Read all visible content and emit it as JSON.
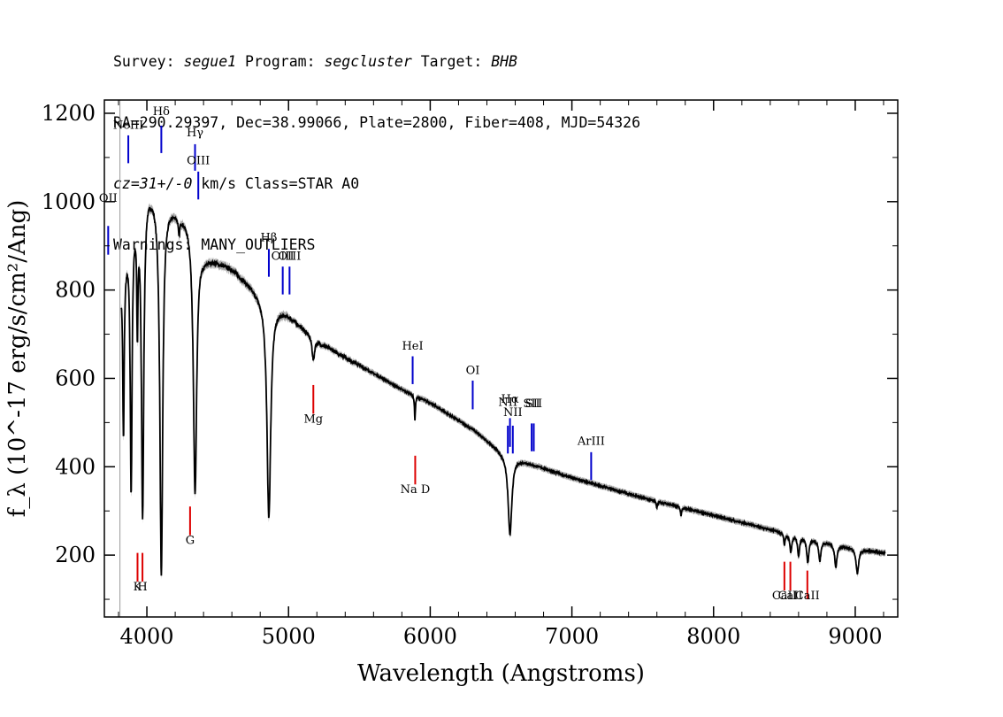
{
  "header": {
    "line1": {
      "survey_label": "Survey: ",
      "survey": "segue1",
      "program_label": " Program: ",
      "program": "segcluster",
      "target_label": " Target: ",
      "target": "BHB"
    },
    "line2": "RA=290.29397, Dec=38.99066, Plate=2800, Fiber=408, MJD=54326",
    "line3": {
      "cz": "cz=31+/-0",
      "rest": " km/s Class=STAR A0"
    },
    "line4": "Warnings: MANY_OUTLIERS"
  },
  "chart_data": {
    "type": "line",
    "xlabel": "Wavelength (Angstroms)",
    "ylabel": "f_λ (10^-17 erg/s/cm²/Ang)",
    "xlim": [
      3700,
      9300
    ],
    "ylim": [
      60,
      1230
    ],
    "xticks": [
      4000,
      5000,
      6000,
      7000,
      8000,
      9000
    ],
    "yticks": [
      200,
      400,
      600,
      800,
      1000,
      1200
    ],
    "continuum": [
      [
        3820,
        830
      ],
      [
        3900,
        980
      ],
      [
        4000,
        1040
      ],
      [
        4100,
        1010
      ],
      [
        4300,
        960
      ],
      [
        4400,
        880
      ],
      [
        4600,
        850
      ],
      [
        4800,
        790
      ],
      [
        5000,
        745
      ],
      [
        5200,
        685
      ],
      [
        5500,
        630
      ],
      [
        5800,
        575
      ],
      [
        6000,
        545
      ],
      [
        6300,
        485
      ],
      [
        6500,
        435
      ],
      [
        6700,
        408
      ],
      [
        7000,
        375
      ],
      [
        7500,
        330
      ],
      [
        8000,
        290
      ],
      [
        8500,
        250
      ],
      [
        9000,
        215
      ],
      [
        9200,
        205
      ]
    ],
    "absorption": [
      {
        "center": 3835,
        "depth": 380,
        "width": 6
      },
      {
        "center": 3889,
        "depth": 600,
        "width": 8
      },
      {
        "center": 3933,
        "depth": 250,
        "width": 5
      },
      {
        "center": 3970,
        "depth": 720,
        "width": 10
      },
      {
        "center": 4102,
        "depth": 850,
        "width": 12
      },
      {
        "center": 4227,
        "depth": 40,
        "width": 6
      },
      {
        "center": 4340,
        "depth": 590,
        "width": 14
      },
      {
        "center": 4861,
        "depth": 490,
        "width": 16
      },
      {
        "center": 5175,
        "depth": 50,
        "width": 10
      },
      {
        "center": 5892,
        "depth": 55,
        "width": 4
      },
      {
        "center": 6563,
        "depth": 180,
        "width": 16
      },
      {
        "center": 7600,
        "depth": 15,
        "width": 5
      },
      {
        "center": 7770,
        "depth": 20,
        "width": 4
      },
      {
        "center": 8500,
        "depth": 25,
        "width": 6
      },
      {
        "center": 8545,
        "depth": 40,
        "width": 8
      },
      {
        "center": 8600,
        "depth": 45,
        "width": 8
      },
      {
        "center": 8665,
        "depth": 55,
        "width": 9
      },
      {
        "center": 8750,
        "depth": 45,
        "width": 9
      },
      {
        "center": 8863,
        "depth": 50,
        "width": 10
      },
      {
        "center": 9015,
        "depth": 55,
        "width": 11
      }
    ],
    "emission_lines": [
      {
        "label": "OII",
        "x": 3727,
        "y0": 880,
        "y1": 945,
        "label_y": 1000
      },
      {
        "label": "NeIII",
        "x": 3869,
        "y0": 1087,
        "y1": 1150,
        "label_y": 1165
      },
      {
        "label": "Hδ",
        "x": 4102,
        "y0": 1110,
        "y1": 1172,
        "label_y": 1196
      },
      {
        "label": "Hγ",
        "x": 4340,
        "y0": 1070,
        "y1": 1130,
        "label_y": 1148
      },
      {
        "label": "OIII",
        "x": 4363,
        "y0": 1005,
        "y1": 1068,
        "label_y": 1085
      },
      {
        "label": "Hβ",
        "x": 4861,
        "y0": 830,
        "y1": 893,
        "label_y": 910
      },
      {
        "label": "OIII",
        "x": 4959,
        "y0": 790,
        "y1": 853,
        "label_y": 868
      },
      {
        "label": "OIII",
        "x": 5007,
        "y0": 790,
        "y1": 853,
        "label_y": 868
      },
      {
        "label": "HeI",
        "x": 5876,
        "y0": 587,
        "y1": 650,
        "label_y": 665
      },
      {
        "label": "OI",
        "x": 6300,
        "y0": 530,
        "y1": 595,
        "label_y": 610
      },
      {
        "label": "NII",
        "x": 6548,
        "y0": 430,
        "y1": 493,
        "label_y": 538
      },
      {
        "label": "Hα",
        "x": 6563,
        "y0": 445,
        "y1": 510,
        "label_y": 545
      },
      {
        "label": "NII",
        "x": 6583,
        "y0": 430,
        "y1": 493,
        "label_y": 515
      },
      {
        "label": "SII",
        "x": 6716,
        "y0": 435,
        "y1": 498,
        "label_y": 535
      },
      {
        "label": "SII",
        "x": 6731,
        "y0": 435,
        "y1": 498,
        "label_y": 535
      },
      {
        "label": "ArIII",
        "x": 7136,
        "y0": 370,
        "y1": 433,
        "label_y": 450
      }
    ],
    "absorption_markers": [
      {
        "label": "K",
        "x": 3934,
        "y0": 140,
        "y1": 205,
        "label_y": 120
      },
      {
        "label": "H",
        "x": 3969,
        "y0": 140,
        "y1": 205,
        "label_y": 120
      },
      {
        "label": "G",
        "x": 4305,
        "y0": 245,
        "y1": 310,
        "label_y": 225
      },
      {
        "label": "Mg",
        "x": 5175,
        "y0": 520,
        "y1": 585,
        "label_y": 500
      },
      {
        "label": "Na D",
        "x": 5894,
        "y0": 360,
        "y1": 425,
        "label_y": 340
      },
      {
        "label": "CaII",
        "x": 8500,
        "y0": 120,
        "y1": 185,
        "label_y": 100
      },
      {
        "label": "CaII",
        "x": 8542,
        "y0": 120,
        "y1": 185,
        "label_y": 100
      },
      {
        "label": "CaII",
        "x": 8662,
        "y0": 100,
        "y1": 165,
        "label_y": 100
      }
    ],
    "colors": {
      "spectrum": "#000000",
      "error_band": "#a8a8a8",
      "emission": "#0000cc",
      "absorption": "#dd0000",
      "sky_line": "#999999"
    }
  }
}
